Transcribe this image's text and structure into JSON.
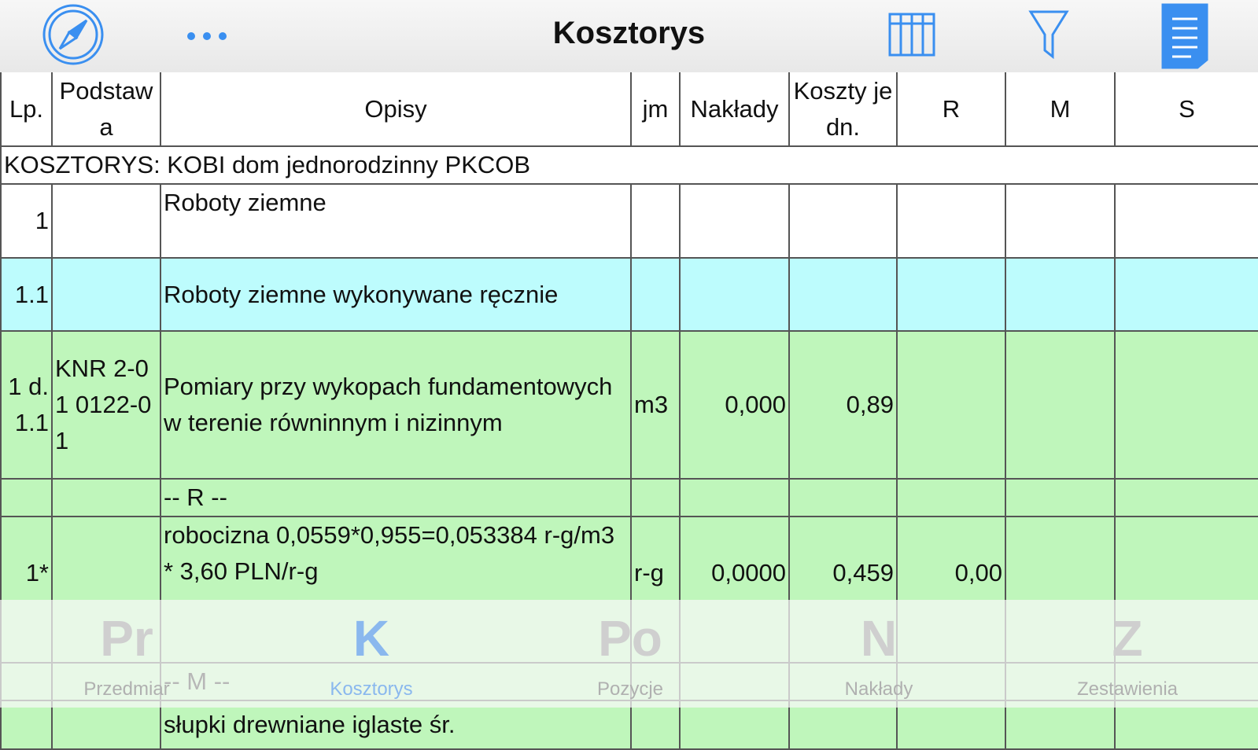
{
  "header": {
    "title": "Kosztorys"
  },
  "table": {
    "columns": [
      "Lp.",
      "Podstawa",
      "Opisy",
      "jm",
      "Nakłady",
      "Koszty jedn.",
      "R",
      "M",
      "S"
    ],
    "rows": [
      [
        "KOSZTORYS: KOBI dom jednorodzinny PKCOB"
      ],
      [
        "1",
        null,
        "Roboty ziemne",
        null,
        null,
        null,
        null,
        null,
        null
      ],
      [
        "1.1",
        null,
        "Roboty ziemne wykonywane ręcznie",
        null,
        null,
        null,
        null,
        null,
        null
      ],
      [
        "1 d.1.1",
        "KNR 2-01 0122-01",
        "Pomiary przy wykopach fundamentowych w terenie równinnym i nizinnym",
        "m3",
        "0,000",
        "0,89",
        null,
        null,
        null
      ],
      [
        null,
        null,
        "-- R --",
        null,
        null,
        null,
        null,
        null,
        null
      ],
      [
        "1*",
        null,
        "robocizna 0,0559*0,955=0,053384 r-g/m3 * 3,60 PLN/r-g",
        "r-g",
        "0,0000",
        "0,459",
        "0,00",
        null,
        null
      ],
      [
        null,
        null,
        "-- M --",
        null,
        null,
        null,
        null,
        null,
        null
      ],
      [
        null,
        null,
        "słupki drewniane iglaste śr.",
        null,
        null,
        null,
        null,
        null,
        null
      ]
    ]
  },
  "tabs": [
    {
      "icon": "Pr",
      "label": "Przedmiar"
    },
    {
      "icon": "K",
      "label": "Kosztorys"
    },
    {
      "icon": "Po",
      "label": "Pozycje"
    },
    {
      "icon": "N",
      "label": "Nakłady"
    },
    {
      "icon": "Z",
      "label": "Zestawienia"
    }
  ]
}
